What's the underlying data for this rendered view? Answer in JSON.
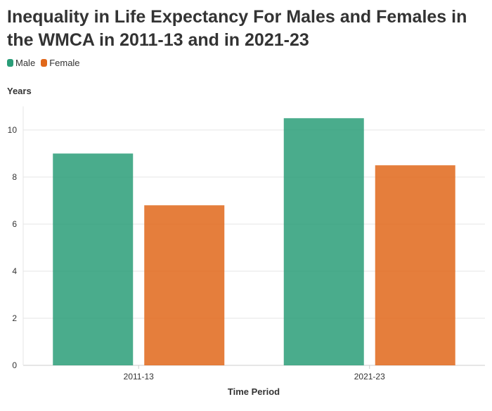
{
  "chart_data": {
    "type": "bar",
    "title": "Inequality in Life Expectancy For Males and Females in the WMCA in 2011-13 and in 2021-23",
    "xlabel": "Time Period",
    "ylabel": "Years",
    "categories": [
      "2011-13",
      "2021-23"
    ],
    "series": [
      {
        "name": "Male",
        "color": "#2a9d78",
        "values": [
          9.0,
          10.5
        ]
      },
      {
        "name": "Female",
        "color": "#e0671a",
        "values": [
          6.8,
          8.5
        ]
      }
    ],
    "ylim": [
      0,
      11
    ],
    "yticks": [
      0,
      2,
      4,
      6,
      8,
      10
    ],
    "grid": true,
    "legend_position": "top-left"
  }
}
